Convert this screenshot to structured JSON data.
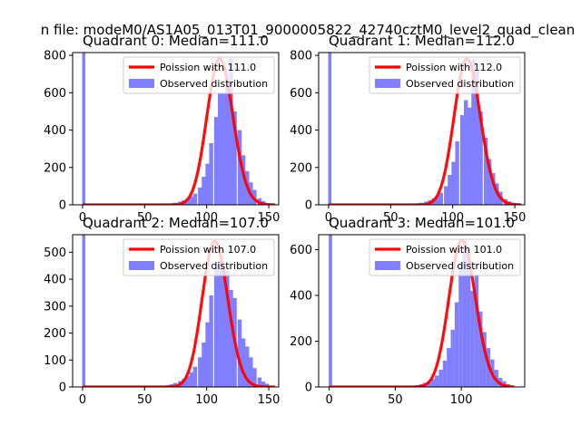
{
  "suptitle": "n file: modeM0/AS1A05_013T01_9000005822_42740cztM0_level2_quad_clean",
  "colors": {
    "poisson": "#ff0000",
    "observed": "#7f7fff",
    "axes": "#000000"
  },
  "chart_data": [
    {
      "type": "bar",
      "title": "Quadrant 0: Median=111.0",
      "median": 111.0,
      "xlim": [
        -8,
        158
      ],
      "ylim": [
        0,
        815
      ],
      "xticks": [
        0,
        50,
        100,
        150
      ],
      "yticks": [
        0,
        200,
        400,
        600,
        800
      ],
      "legend_position": "top-right",
      "legend": {
        "poisson_label": "Poission with 111.0",
        "observed_label": "Observed distribution"
      },
      "series": [
        {
          "name": "Poission with 111.0",
          "type": "line",
          "lambda": 111.0,
          "x_range": [
            0,
            155
          ],
          "scale": 780
        },
        {
          "name": "Observed distribution",
          "type": "histogram",
          "bin_width": 3.2,
          "bins": [
            [
              0,
              815
            ],
            [
              64,
              3
            ],
            [
              67,
              5
            ],
            [
              70,
              8
            ],
            [
              73,
              11
            ],
            [
              77,
              17
            ],
            [
              80,
              25
            ],
            [
              83,
              32
            ],
            [
              86,
              45
            ],
            [
              89,
              60
            ],
            [
              93,
              92
            ],
            [
              96,
              150
            ],
            [
              99,
              220
            ],
            [
              102,
              330
            ],
            [
              106,
              470
            ],
            [
              109,
              600
            ],
            [
              112,
              600
            ],
            [
              115,
              640
            ],
            [
              118,
              785
            ],
            [
              121,
              500
            ],
            [
              125,
              400
            ],
            [
              128,
              265
            ],
            [
              131,
              180
            ],
            [
              134,
              120
            ],
            [
              137,
              80
            ],
            [
              141,
              35
            ],
            [
              144,
              20
            ],
            [
              147,
              10
            ],
            [
              150,
              5
            ]
          ]
        }
      ]
    },
    {
      "type": "bar",
      "title": "Quadrant 1: Median=112.0",
      "median": 112.0,
      "xlim": [
        -8,
        158
      ],
      "ylim": [
        0,
        815
      ],
      "xticks": [
        0,
        50,
        100,
        150
      ],
      "yticks": [
        0,
        200,
        400,
        600,
        800
      ],
      "legend_position": "top-right",
      "legend": {
        "poisson_label": "Poission with 112.0",
        "observed_label": "Observed distribution"
      },
      "series": [
        {
          "name": "Poission with 112.0",
          "type": "line",
          "lambda": 112.0,
          "x_range": [
            0,
            155
          ],
          "scale": 780
        },
        {
          "name": "Observed distribution",
          "type": "histogram",
          "bin_width": 3.2,
          "bins": [
            [
              0,
              815
            ],
            [
              64,
              3
            ],
            [
              67,
              5
            ],
            [
              70,
              8
            ],
            [
              73,
              11
            ],
            [
              77,
              17
            ],
            [
              80,
              25
            ],
            [
              83,
              35
            ],
            [
              86,
              48
            ],
            [
              89,
              65
            ],
            [
              93,
              100
            ],
            [
              96,
              160
            ],
            [
              99,
              230
            ],
            [
              102,
              340
            ],
            [
              106,
              480
            ],
            [
              109,
              560
            ],
            [
              112,
              520
            ],
            [
              115,
              780
            ],
            [
              118,
              720
            ],
            [
              121,
              500
            ],
            [
              125,
              360
            ],
            [
              128,
              245
            ],
            [
              131,
              170
            ],
            [
              134,
              115
            ],
            [
              137,
              70
            ],
            [
              141,
              30
            ],
            [
              144,
              18
            ],
            [
              147,
              8
            ],
            [
              150,
              4
            ]
          ]
        }
      ]
    },
    {
      "type": "bar",
      "title": "Quadrant 2: Median=107.0",
      "median": 107.0,
      "xlim": [
        -8,
        158
      ],
      "ylim": [
        0,
        565
      ],
      "xticks": [
        0,
        50,
        100,
        150
      ],
      "yticks": [
        0,
        100,
        200,
        300,
        400,
        500
      ],
      "legend_position": "top-right",
      "legend": {
        "poisson_label": "Poission with 107.0",
        "observed_label": "Observed distribution"
      },
      "series": [
        {
          "name": "Poission with 107.0",
          "type": "line",
          "lambda": 107.0,
          "x_range": [
            0,
            155
          ],
          "scale": 540
        },
        {
          "name": "Observed distribution",
          "type": "histogram",
          "bin_width": 3.2,
          "bins": [
            [
              0,
              565
            ],
            [
              64,
              5
            ],
            [
              67,
              7
            ],
            [
              70,
              10
            ],
            [
              73,
              15
            ],
            [
              77,
              22
            ],
            [
              80,
              30
            ],
            [
              83,
              40
            ],
            [
              86,
              55
            ],
            [
              89,
              75
            ],
            [
              93,
              110
            ],
            [
              96,
              165
            ],
            [
              99,
              240
            ],
            [
              102,
              340
            ],
            [
              106,
              440
            ],
            [
              109,
              470
            ],
            [
              112,
              440
            ],
            [
              115,
              430
            ],
            [
              118,
              360
            ],
            [
              121,
              330
            ],
            [
              125,
              250
            ],
            [
              128,
              180
            ],
            [
              131,
              150
            ],
            [
              134,
              110
            ],
            [
              137,
              70
            ],
            [
              141,
              35
            ],
            [
              144,
              20
            ],
            [
              147,
              12
            ],
            [
              150,
              5
            ]
          ]
        }
      ]
    },
    {
      "type": "bar",
      "title": "Quadrant 3: Median=101.0",
      "median": 101.0,
      "xlim": [
        -8,
        148
      ],
      "ylim": [
        0,
        665
      ],
      "xticks": [
        0,
        50,
        100
      ],
      "yticks": [
        0,
        200,
        400,
        600
      ],
      "legend_position": "top-right",
      "legend": {
        "poisson_label": "Poission with 101.0",
        "observed_label": "Observed distribution"
      },
      "series": [
        {
          "name": "Poission with 101.0",
          "type": "line",
          "lambda": 101.0,
          "x_range": [
            0,
            140
          ],
          "scale": 640
        },
        {
          "name": "Observed distribution",
          "type": "histogram",
          "bin_width": 3.0,
          "bins": [
            [
              0,
              665
            ],
            [
              59,
              3
            ],
            [
              62,
              5
            ],
            [
              65,
              8
            ],
            [
              68,
              12
            ],
            [
              71,
              18
            ],
            [
              74,
              25
            ],
            [
              77,
              35
            ],
            [
              80,
              50
            ],
            [
              83,
              75
            ],
            [
              86,
              115
            ],
            [
              89,
              170
            ],
            [
              92,
              250
            ],
            [
              95,
              370
            ],
            [
              98,
              540
            ],
            [
              101,
              640
            ],
            [
              104,
              590
            ],
            [
              107,
              420
            ],
            [
              110,
              490
            ],
            [
              113,
              330
            ],
            [
              116,
              240
            ],
            [
              119,
              170
            ],
            [
              122,
              120
            ],
            [
              125,
              75
            ],
            [
              128,
              40
            ],
            [
              131,
              25
            ],
            [
              134,
              12
            ],
            [
              137,
              5
            ]
          ]
        }
      ]
    }
  ]
}
